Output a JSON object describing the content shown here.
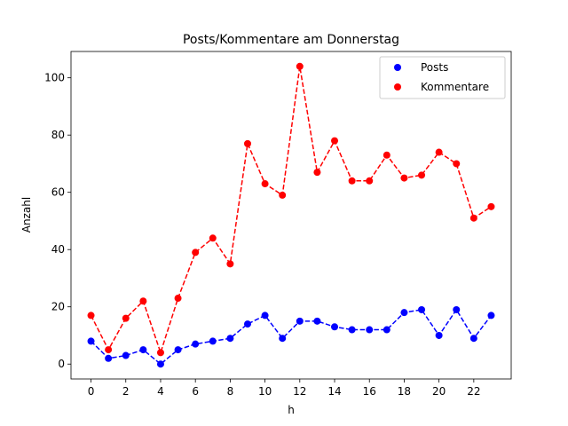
{
  "chart_data": {
    "type": "line",
    "title": "Posts/Kommentare am Donnerstag",
    "xlabel": "h",
    "ylabel": "Anzahl",
    "xlim": [
      -1.15,
      24.15
    ],
    "ylim": [
      -5.2,
      109.2
    ],
    "xticks": [
      0,
      2,
      4,
      6,
      8,
      10,
      12,
      14,
      16,
      18,
      20,
      22
    ],
    "yticks": [
      0,
      20,
      40,
      60,
      80,
      100
    ],
    "grid": false,
    "legend_position": "top-right",
    "x": [
      0,
      1,
      2,
      3,
      4,
      5,
      6,
      7,
      8,
      9,
      10,
      11,
      12,
      13,
      14,
      15,
      16,
      17,
      18,
      19,
      20,
      21,
      22,
      23
    ],
    "series": [
      {
        "name": "Posts",
        "color": "#0000ff",
        "line_style": "dashed",
        "marker": "circle",
        "values": [
          8,
          2,
          3,
          5,
          0,
          5,
          7,
          8,
          9,
          14,
          17,
          9,
          15,
          15,
          13,
          12,
          12,
          12,
          18,
          19,
          10,
          19,
          9,
          17
        ]
      },
      {
        "name": "Kommentare",
        "color": "#ff0000",
        "line_style": "dashed",
        "marker": "circle",
        "values": [
          17,
          5,
          16,
          22,
          4,
          23,
          39,
          44,
          35,
          77,
          63,
          59,
          104,
          67,
          78,
          64,
          64,
          73,
          65,
          66,
          74,
          70,
          51,
          55
        ]
      }
    ]
  }
}
